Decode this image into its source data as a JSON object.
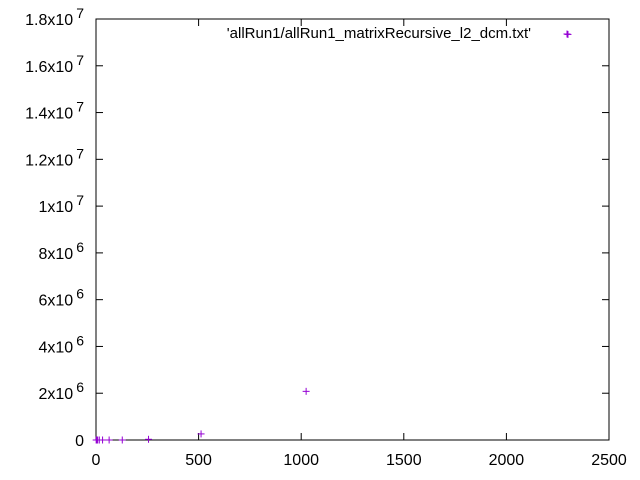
{
  "chart_data": {
    "type": "scatter",
    "title": "",
    "xlabel": "",
    "ylabel": "",
    "xlim": [
      0,
      2500
    ],
    "ylim": [
      0,
      18000000
    ],
    "x_ticks": [
      0,
      500,
      1000,
      1500,
      2000,
      2500
    ],
    "y_ticks": [
      {
        "value": 0,
        "mant": "0",
        "exp": ""
      },
      {
        "value": 2000000,
        "mant": "2x10",
        "exp": "6"
      },
      {
        "value": 4000000,
        "mant": "4x10",
        "exp": "6"
      },
      {
        "value": 6000000,
        "mant": "6x10",
        "exp": "6"
      },
      {
        "value": 8000000,
        "mant": "8x10",
        "exp": "6"
      },
      {
        "value": 10000000,
        "mant": "1x10",
        "exp": "7"
      },
      {
        "value": 12000000,
        "mant": "1.2x10",
        "exp": "7"
      },
      {
        "value": 14000000,
        "mant": "1.4x10",
        "exp": "7"
      },
      {
        "value": 16000000,
        "mant": "1.6x10",
        "exp": "7"
      },
      {
        "value": 18000000,
        "mant": "1.8x10",
        "exp": "7"
      }
    ],
    "grid": false,
    "legend_position": "top-right",
    "series": [
      {
        "name": "'allRun1/allRun1_matrixRecursive_l2_dcm.txt'",
        "color": "#9400d3",
        "marker": "plus",
        "points": [
          {
            "x": 1,
            "y": 0
          },
          {
            "x": 2,
            "y": 0
          },
          {
            "x": 4,
            "y": 0
          },
          {
            "x": 8,
            "y": 0
          },
          {
            "x": 16,
            "y": 0
          },
          {
            "x": 32,
            "y": 0
          },
          {
            "x": 64,
            "y": 0
          },
          {
            "x": 128,
            "y": 0
          },
          {
            "x": 256,
            "y": 30000
          },
          {
            "x": 512,
            "y": 260000
          },
          {
            "x": 1024,
            "y": 2080000
          },
          {
            "x": 2300,
            "y": 17340000
          }
        ]
      }
    ]
  }
}
